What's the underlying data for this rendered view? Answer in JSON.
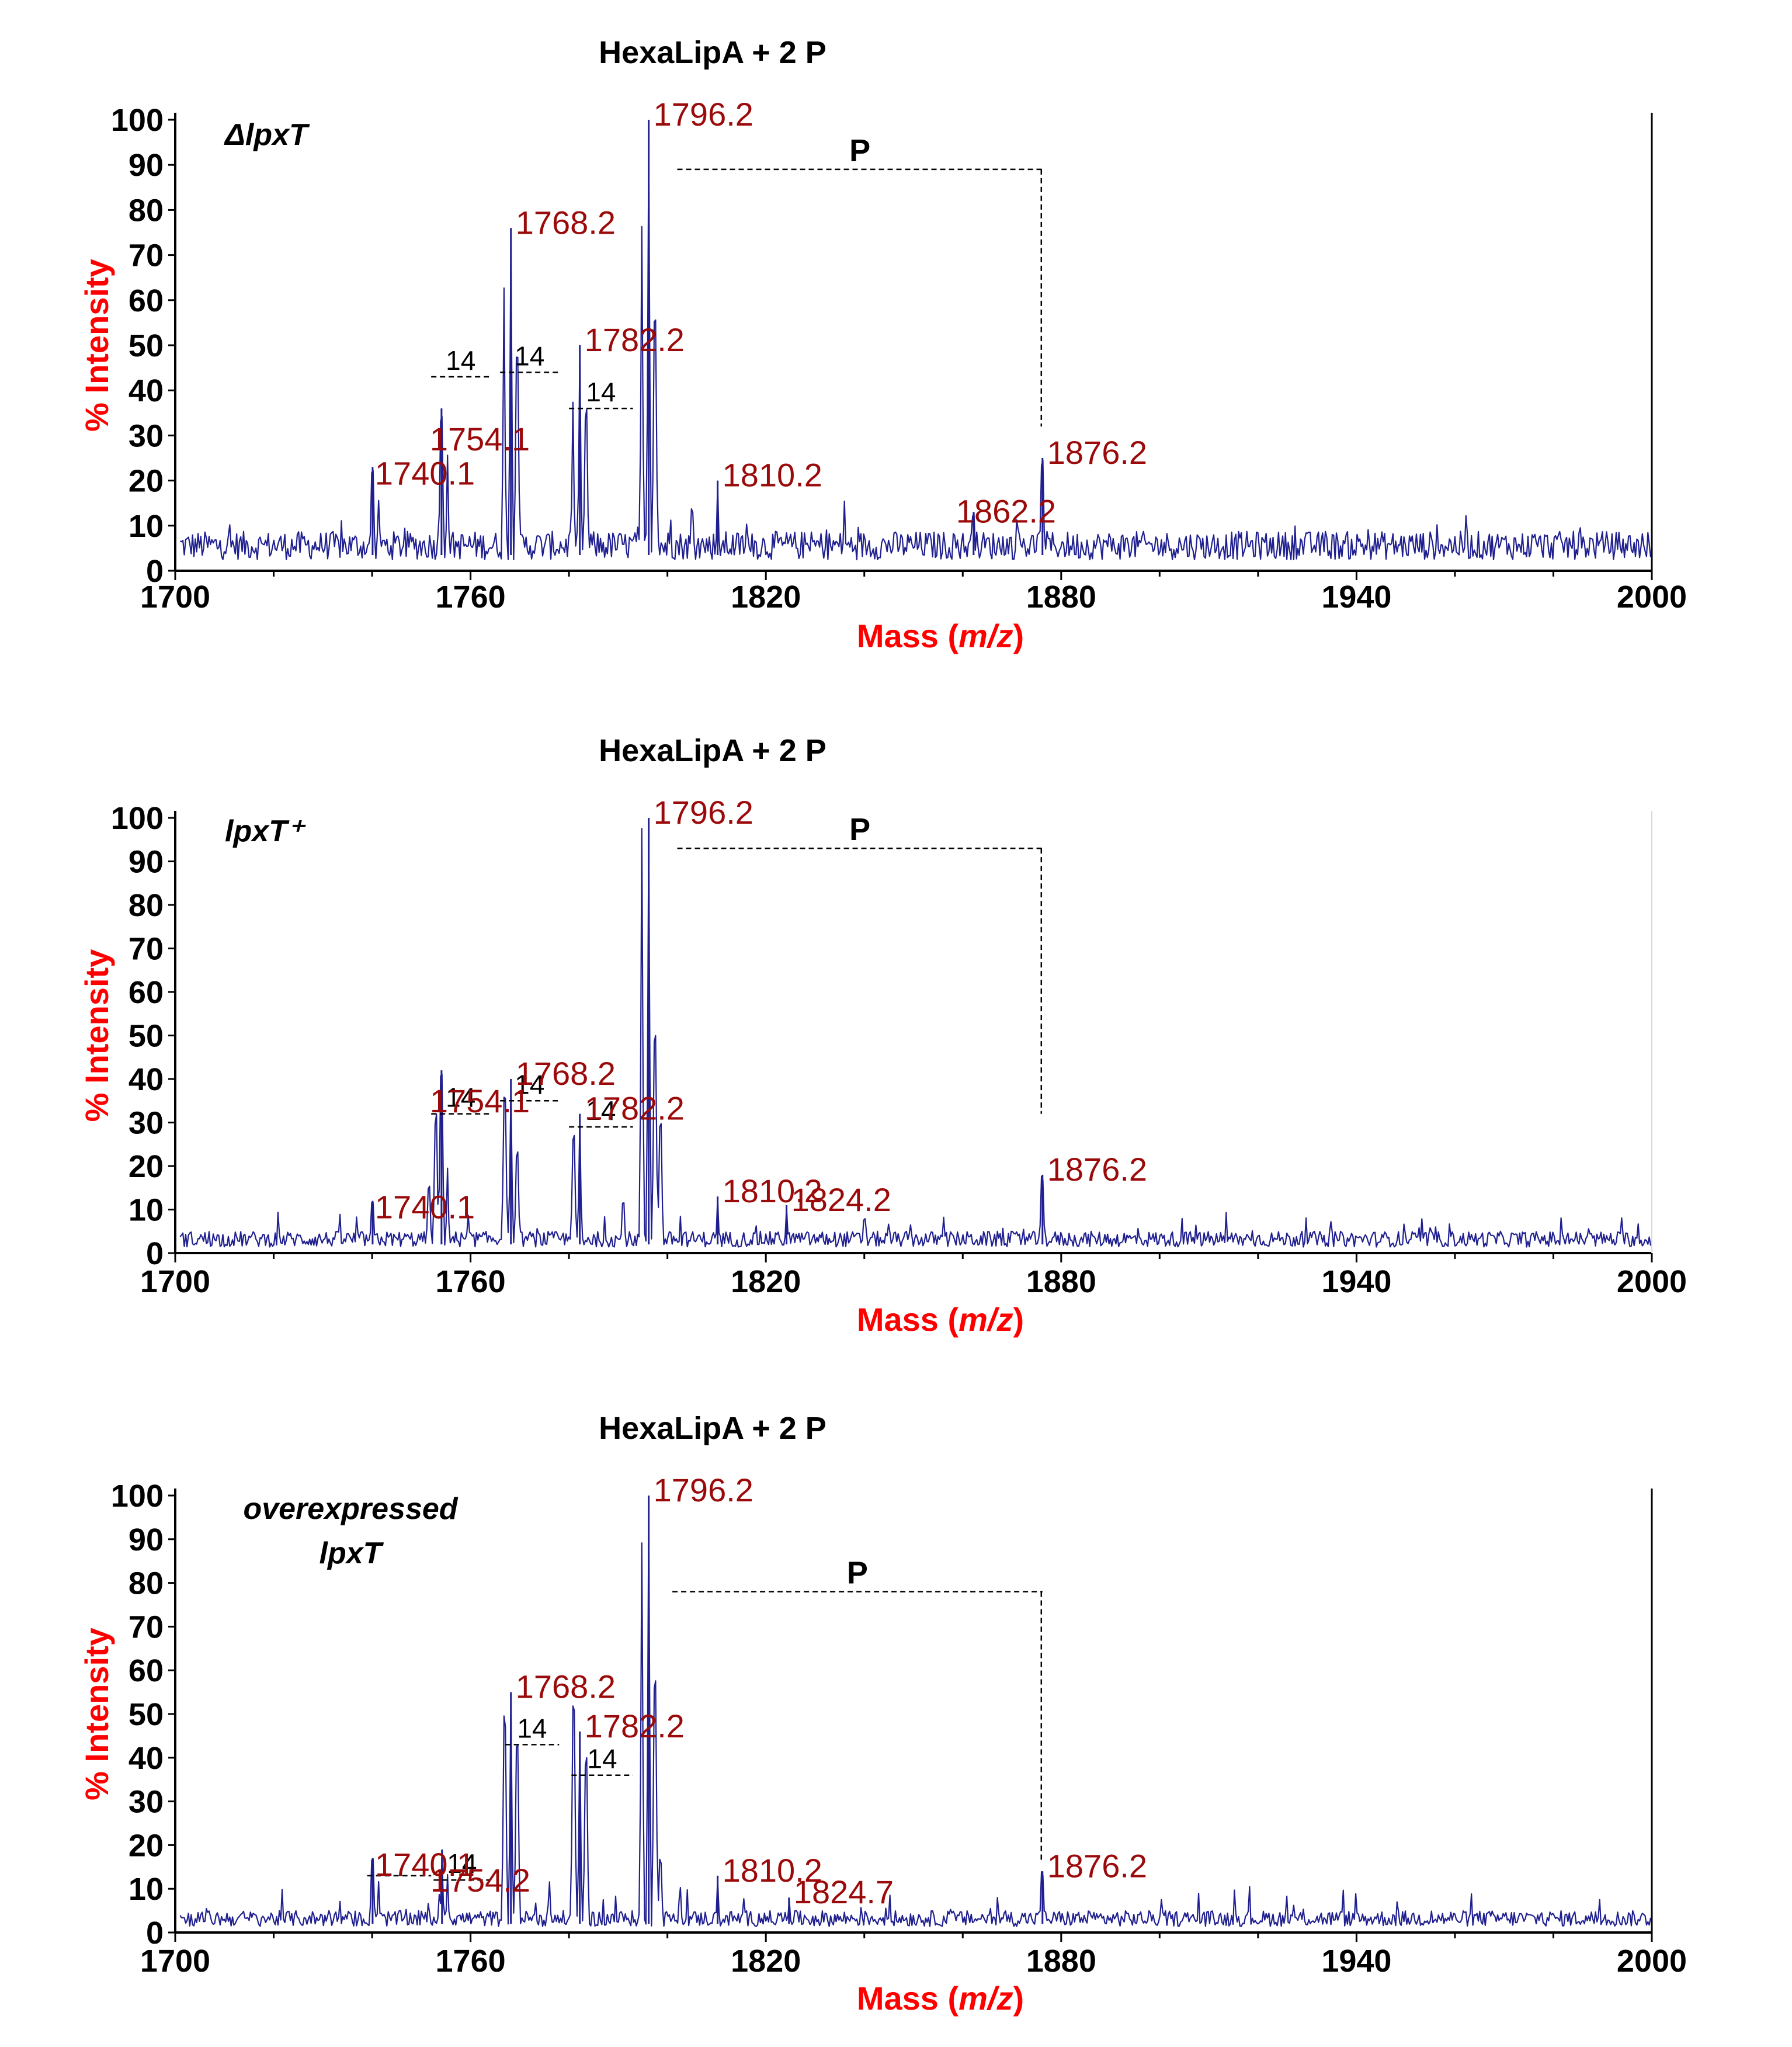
{
  "colors": {
    "spectrum": "#1f1f8f",
    "peak_label": "#9b0a0a",
    "axis_label": "#ff0000",
    "axis": "#000000"
  },
  "chart_data": [
    {
      "type": "line",
      "title": "HexaLipA + 2 P",
      "strain": [
        "ΔlpxT"
      ],
      "xlabel": "Mass (m/z)",
      "xlabel_plain": "Mass (",
      "xlabel_italic": "m/z",
      "xlabel_close": ")",
      "ylabel": "% Intensity",
      "xlim": [
        1700,
        2000
      ],
      "ylim": [
        0,
        100
      ],
      "xticks": [
        1700,
        1760,
        1820,
        1880,
        1940,
        2000
      ],
      "yticks": [
        0,
        10,
        20,
        30,
        40,
        50,
        60,
        70,
        80,
        90,
        100
      ],
      "baseline": 7,
      "peaks": [
        {
          "mz": 1740.1,
          "intensity": 23,
          "label": "1740.1"
        },
        {
          "mz": 1754.1,
          "intensity": 36,
          "label": "1754.1"
        },
        {
          "mz": 1768.2,
          "intensity": 76,
          "label": "1768.2"
        },
        {
          "mz": 1782.2,
          "intensity": 50,
          "label": "1782.2"
        },
        {
          "mz": 1796.2,
          "intensity": 100,
          "label": "1796.2"
        },
        {
          "mz": 1810.2,
          "intensity": 20,
          "label": "1810.2"
        },
        {
          "mz": 1862.2,
          "intensity": 13,
          "label": "1862.2"
        },
        {
          "mz": 1876.2,
          "intensity": 25,
          "label": "1876.2"
        }
      ],
      "minor_peaks": [
        {
          "mz": 1741.3,
          "intensity": 16
        },
        {
          "mz": 1755.3,
          "intensity": 26
        },
        {
          "mz": 1766.8,
          "intensity": 64
        },
        {
          "mz": 1769.4,
          "intensity": 50
        },
        {
          "mz": 1780.8,
          "intensity": 40
        },
        {
          "mz": 1783.4,
          "intensity": 36
        },
        {
          "mz": 1794.8,
          "intensity": 78
        },
        {
          "mz": 1797.4,
          "intensity": 58
        },
        {
          "mz": 1836,
          "intensity": 16
        },
        {
          "mz": 1805,
          "intensity": 14
        }
      ],
      "differences": [
        {
          "from": 1752.0,
          "to": 1764.0,
          "y": 43,
          "label": "14"
        },
        {
          "from": 1766.0,
          "to": 1778.0,
          "y": 44,
          "label": "14"
        },
        {
          "from": 1780.0,
          "to": 1793.0,
          "y": 36,
          "label": "14"
        }
      ],
      "bracket": {
        "from": 1802,
        "to": 1876.2,
        "y": 89,
        "drop_to": 32,
        "label": "P"
      }
    },
    {
      "type": "line",
      "title": "HexaLipA + 2 P",
      "strain": [
        "lpxT⁺"
      ],
      "xlabel": "Mass (m/z)",
      "xlabel_plain": "Mass (",
      "xlabel_italic": "m/z",
      "xlabel_close": ")",
      "ylabel": "% Intensity",
      "xlim": [
        1700,
        2000
      ],
      "ylim": [
        0,
        100
      ],
      "xticks": [
        1700,
        1760,
        1820,
        1880,
        1940,
        2000
      ],
      "yticks": [
        0,
        10,
        20,
        30,
        40,
        50,
        60,
        70,
        80,
        90,
        100
      ],
      "baseline": 4,
      "peaks": [
        {
          "mz": 1740.1,
          "intensity": 12,
          "label": "1740.1"
        },
        {
          "mz": 1754.1,
          "intensity": 42,
          "label": "1754.1"
        },
        {
          "mz": 1768.2,
          "intensity": 40,
          "label": "1768.2"
        },
        {
          "mz": 1782.2,
          "intensity": 32,
          "label": "1782.2"
        },
        {
          "mz": 1796.2,
          "intensity": 100,
          "label": "1796.2"
        },
        {
          "mz": 1810.2,
          "intensity": 13,
          "label": "1810.2"
        },
        {
          "mz": 1824.2,
          "intensity": 11,
          "label": "1824.2"
        },
        {
          "mz": 1876.2,
          "intensity": 18,
          "label": "1876.2"
        }
      ],
      "minor_peaks": [
        {
          "mz": 1751.5,
          "intensity": 16
        },
        {
          "mz": 1753.0,
          "intensity": 32
        },
        {
          "mz": 1755.3,
          "intensity": 20
        },
        {
          "mz": 1767.0,
          "intensity": 38
        },
        {
          "mz": 1769.4,
          "intensity": 24
        },
        {
          "mz": 1781.0,
          "intensity": 28
        },
        {
          "mz": 1794.8,
          "intensity": 98
        },
        {
          "mz": 1797.4,
          "intensity": 52
        },
        {
          "mz": 1798.6,
          "intensity": 30
        },
        {
          "mz": 1791,
          "intensity": 12
        },
        {
          "mz": 1840,
          "intensity": 8
        }
      ],
      "differences": [
        {
          "from": 1752.0,
          "to": 1764.0,
          "y": 32,
          "label": "14"
        },
        {
          "from": 1766.0,
          "to": 1778.0,
          "y": 35,
          "label": "14"
        },
        {
          "from": 1780.0,
          "to": 1793.0,
          "y": 29,
          "label": "14"
        }
      ],
      "bracket": {
        "from": 1802,
        "to": 1876.2,
        "y": 93,
        "drop_to": 32,
        "label": "P"
      }
    },
    {
      "type": "line",
      "title": "HexaLipA + 2 P",
      "strain": [
        "overexpressed",
        "lpxT"
      ],
      "xlabel": "Mass (m/z)",
      "xlabel_plain": "Mass (",
      "xlabel_italic": "m/z",
      "xlabel_close": ")",
      "ylabel": "% Intensity",
      "xlim": [
        1700,
        2000
      ],
      "ylim": [
        0,
        100
      ],
      "xticks": [
        1700,
        1760,
        1820,
        1880,
        1940,
        2000
      ],
      "yticks": [
        0,
        10,
        20,
        30,
        40,
        50,
        60,
        70,
        80,
        90,
        100
      ],
      "baseline": 4,
      "peaks": [
        {
          "mz": 1740.1,
          "intensity": 17,
          "label": "1740.1"
        },
        {
          "mz": 1754.2,
          "intensity": 19,
          "label": "1754.2"
        },
        {
          "mz": 1768.2,
          "intensity": 55,
          "label": "1768.2"
        },
        {
          "mz": 1782.2,
          "intensity": 46,
          "label": "1782.2"
        },
        {
          "mz": 1796.2,
          "intensity": 100,
          "label": "1796.2"
        },
        {
          "mz": 1810.2,
          "intensity": 13,
          "label": "1810.2"
        },
        {
          "mz": 1824.7,
          "intensity": 8,
          "label": "1824.7"
        },
        {
          "mz": 1876.2,
          "intensity": 14,
          "label": "1876.2"
        }
      ],
      "minor_peaks": [
        {
          "mz": 1741.3,
          "intensity": 12
        },
        {
          "mz": 1755.3,
          "intensity": 14
        },
        {
          "mz": 1767.0,
          "intensity": 50
        },
        {
          "mz": 1769.4,
          "intensity": 44
        },
        {
          "mz": 1781.0,
          "intensity": 52
        },
        {
          "mz": 1783.4,
          "intensity": 40
        },
        {
          "mz": 1794.8,
          "intensity": 92
        },
        {
          "mz": 1797.4,
          "intensity": 60
        },
        {
          "mz": 1798.6,
          "intensity": 17
        },
        {
          "mz": 1776,
          "intensity": 12
        }
      ],
      "differences": [
        {
          "from": 1739.0,
          "to": 1752.0,
          "y": 13,
          "label": ""
        },
        {
          "from": 1752.5,
          "to": 1764.0,
          "y": 12,
          "label": "14"
        },
        {
          "from": 1767.0,
          "to": 1778.0,
          "y": 43,
          "label": "14"
        },
        {
          "from": 1780.5,
          "to": 1793.0,
          "y": 36,
          "label": "14"
        }
      ],
      "bracket": {
        "from": 1801,
        "to": 1876.2,
        "y": 78,
        "drop_to": 16,
        "label": "P"
      }
    }
  ]
}
